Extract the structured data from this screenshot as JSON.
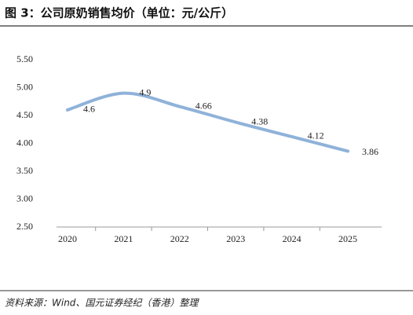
{
  "chart_data": {
    "type": "line",
    "title": "图 3：公司原奶销售均价（单位：元/公斤）",
    "source": "资料来源：Wind、国元证券经纪（香港）整理",
    "categories": [
      "2020",
      "2021",
      "2022",
      "2023",
      "2024",
      "2025"
    ],
    "values": [
      4.6,
      4.9,
      4.66,
      4.38,
      4.12,
      3.86
    ],
    "color": "#8fb2d9",
    "smooth": true,
    "ylim": [
      2.5,
      5.5
    ],
    "yticks": [
      {
        "value": 2.5,
        "label": "2.50"
      },
      {
        "value": 3,
        "label": "3.00"
      },
      {
        "value": 3.5,
        "label": "3.50"
      },
      {
        "value": 4,
        "label": "4.00"
      },
      {
        "value": 4.5,
        "label": "4.50"
      },
      {
        "value": 5,
        "label": "5.00"
      },
      {
        "value": 5.5,
        "label": "5.50"
      }
    ]
  }
}
